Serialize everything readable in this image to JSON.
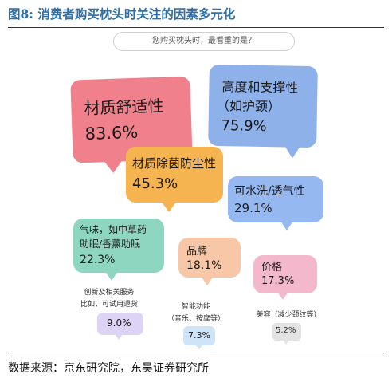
{
  "title": "图8:  消费者购买枕头时关注的因素多元化",
  "question": "您购买枕头时，最看重的是？",
  "source": "数据来源：京东研究院，东吴证券研究所",
  "chart_data": {
    "type": "bubble-callout",
    "categories": [
      "材质舒适性",
      "高度和支撑性（如护颈）",
      "材质除菌防尘性",
      "可水洗/透气性",
      "气味，如中草药助眠/香薰助眠",
      "品牌",
      "价格",
      "创新及相关服务比如，可试用退货",
      "智能功能（音乐、按摩等）",
      "美容（减少颈纹等）"
    ],
    "values": [
      83.6,
      75.9,
      45.3,
      29.1,
      22.3,
      18.1,
      17.3,
      9.0,
      7.3,
      5.2
    ],
    "unit": "%"
  },
  "bubbles": [
    {
      "line1": "材质舒适性",
      "line2": "",
      "value": "83.6%",
      "color": "#f0808c"
    },
    {
      "line1": "高度和支撑性",
      "line2": "（如护颈）",
      "value": "75.9%",
      "color": "#8fb1ea"
    },
    {
      "line1": "材质除菌防尘性",
      "line2": "",
      "value": "45.3%",
      "color": "#f5b44f"
    },
    {
      "line1": "可水洗/透气性",
      "line2": "",
      "value": "29.1%",
      "color": "#96b8f0"
    },
    {
      "line1": "气味，如中草药",
      "line2": "助眠/香薰助眠",
      "value": "22.3%",
      "color": "#8fd6c1"
    },
    {
      "line1": "品牌",
      "line2": "",
      "value": "18.1%",
      "color": "#f7c7a8"
    },
    {
      "line1": "价格",
      "line2": "",
      "value": "17.3%",
      "color": "#f3b8cc"
    }
  ],
  "small": [
    {
      "line1": "创新及相关服务",
      "line2": "比如，可试用退货",
      "value": "9.0%",
      "color": "#dcd3f5"
    },
    {
      "line1": "智能功能",
      "line2": "（音乐、按摩等）",
      "value": "7.3%",
      "color": "#cfe4f7"
    },
    {
      "line1": "美容（减少颈纹等）",
      "line2": "",
      "value": "5.2%",
      "color": "#e3e3e3"
    }
  ]
}
